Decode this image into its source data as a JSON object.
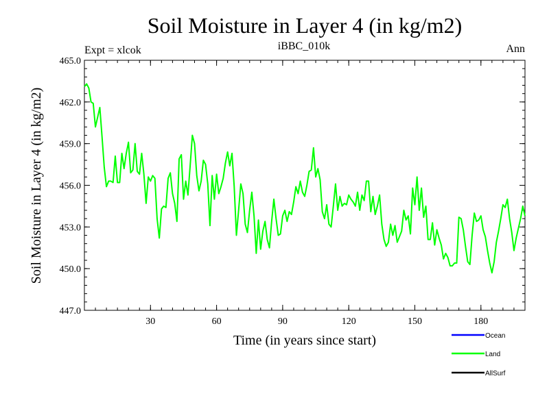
{
  "chart_data": {
    "type": "line",
    "title": "Soil Moisture in Layer 4 (in kg/m2)",
    "subtitle_left": "Expt = xlcok",
    "subtitle_center": "iBBC_010k",
    "subtitle_right": "Ann",
    "xlabel": "Time (in years since start)",
    "ylabel": "Soil Moisture in Layer 4 (in kg/m2)",
    "xlim": [
      0,
      200
    ],
    "ylim": [
      447.0,
      465.0
    ],
    "x_ticks": [
      30,
      60,
      90,
      120,
      150,
      180
    ],
    "x_tick_labels": [
      "30",
      "60",
      "90",
      "120",
      "150",
      "180"
    ],
    "y_ticks": [
      447.0,
      450.0,
      453.0,
      456.0,
      459.0,
      462.0,
      465.0
    ],
    "y_tick_labels": [
      "447.0",
      "450.0",
      "453.0",
      "456.0",
      "459.0",
      "462.0",
      "465.0"
    ],
    "legend": [
      {
        "name": "Ocean",
        "color": "#0000ff"
      },
      {
        "name": "Land",
        "color": "#00ff00"
      },
      {
        "name": "AllSurf",
        "color": "#000000"
      }
    ],
    "series": [
      {
        "name": "Land",
        "color": "#00ff00",
        "x": [
          0,
          1,
          2,
          3,
          4,
          5,
          6,
          7,
          8,
          9,
          10,
          11,
          12,
          13,
          14,
          15,
          16,
          17,
          18,
          19,
          20,
          21,
          22,
          23,
          24,
          25,
          26,
          27,
          28,
          29,
          30,
          31,
          32,
          33,
          34,
          35,
          36,
          37,
          38,
          39,
          40,
          41,
          42,
          43,
          44,
          45,
          46,
          47,
          48,
          49,
          50,
          51,
          52,
          53,
          54,
          55,
          56,
          57,
          58,
          59,
          60,
          61,
          62,
          63,
          64,
          65,
          66,
          67,
          68,
          69,
          70,
          71,
          72,
          73,
          74,
          75,
          76,
          77,
          78,
          79,
          80,
          81,
          82,
          83,
          84,
          85,
          86,
          87,
          88,
          89,
          90,
          91,
          92,
          93,
          94,
          95,
          96,
          97,
          98,
          99,
          100,
          101,
          102,
          103,
          104,
          105,
          106,
          107,
          108,
          109,
          110,
          111,
          112,
          113,
          114,
          115,
          116,
          117,
          118,
          119,
          120,
          121,
          122,
          123,
          124,
          125,
          126,
          127,
          128,
          129,
          130,
          131,
          132,
          133,
          134,
          135,
          136,
          137,
          138,
          139,
          140,
          141,
          142,
          143,
          144,
          145,
          146,
          147,
          148,
          149,
          150,
          151,
          152,
          153,
          154,
          155,
          156,
          157,
          158,
          159,
          160,
          161,
          162,
          163,
          164,
          165,
          166,
          167,
          168,
          169,
          170,
          171,
          172,
          173,
          174,
          175,
          176,
          177,
          178,
          179,
          180,
          181,
          182,
          183,
          184,
          185,
          186,
          187,
          188,
          189,
          190,
          191,
          192,
          193,
          194,
          195,
          196,
          197,
          198,
          199,
          200
        ],
        "values": [
          463.1,
          463.3,
          463.0,
          462.0,
          461.9,
          460.2,
          460.9,
          461.6,
          459.5,
          457.3,
          455.9,
          456.3,
          456.3,
          456.2,
          458.1,
          456.2,
          456.2,
          458.3,
          457.2,
          458.3,
          459.1,
          456.9,
          457.1,
          459.0,
          457.0,
          456.8,
          458.3,
          456.8,
          454.7,
          456.6,
          456.3,
          456.7,
          456.5,
          453.6,
          452.2,
          454.3,
          454.5,
          454.4,
          456.5,
          456.9,
          455.4,
          454.7,
          453.4,
          457.9,
          458.2,
          455.0,
          456.3,
          455.3,
          457.4,
          459.6,
          459.0,
          456.7,
          455.6,
          456.3,
          457.8,
          457.5,
          456.1,
          453.1,
          456.7,
          455.0,
          456.8,
          455.4,
          455.9,
          456.5,
          457.6,
          458.4,
          457.4,
          458.3,
          455.9,
          452.4,
          454.2,
          456.1,
          455.4,
          453.2,
          452.6,
          454.2,
          455.5,
          453.8,
          451.1,
          453.5,
          451.4,
          452.7,
          453.4,
          452.1,
          451.5,
          453.4,
          455.0,
          453.6,
          452.4,
          452.5,
          453.8,
          454.2,
          453.4,
          454.1,
          453.9,
          454.8,
          455.9,
          455.4,
          456.3,
          455.5,
          455.2,
          456.0,
          457.0,
          457.1,
          458.7,
          456.6,
          457.2,
          456.4,
          454.1,
          453.6,
          454.6,
          453.2,
          453.0,
          454.5,
          456.1,
          454.2,
          455.2,
          454.5,
          454.7,
          454.6,
          455.3,
          455.0,
          454.8,
          454.5,
          455.5,
          454.2,
          455.3,
          454.9,
          456.3,
          456.3,
          454.1,
          455.2,
          453.9,
          454.5,
          455.3,
          453.2,
          452.1,
          451.6,
          451.9,
          453.2,
          452.4,
          453.1,
          451.9,
          452.3,
          452.7,
          454.2,
          453.5,
          453.8,
          452.5,
          455.8,
          454.6,
          456.6,
          454.2,
          455.8,
          453.7,
          454.5,
          452.1,
          452.1,
          453.3,
          451.7,
          452.8,
          452.2,
          451.7,
          450.7,
          451.1,
          450.8,
          450.2,
          450.2,
          450.4,
          450.4,
          453.7,
          453.6,
          452.8,
          451.6,
          450.5,
          450.3,
          452.4,
          454.0,
          453.4,
          453.5,
          453.8,
          452.8,
          452.3,
          451.3,
          450.4,
          449.7,
          450.5,
          451.9,
          452.7,
          453.6,
          454.6,
          454.4,
          455.0,
          453.6,
          452.6,
          451.3,
          452.2,
          452.9,
          453.6,
          454.5,
          453.8
        ]
      }
    ]
  }
}
